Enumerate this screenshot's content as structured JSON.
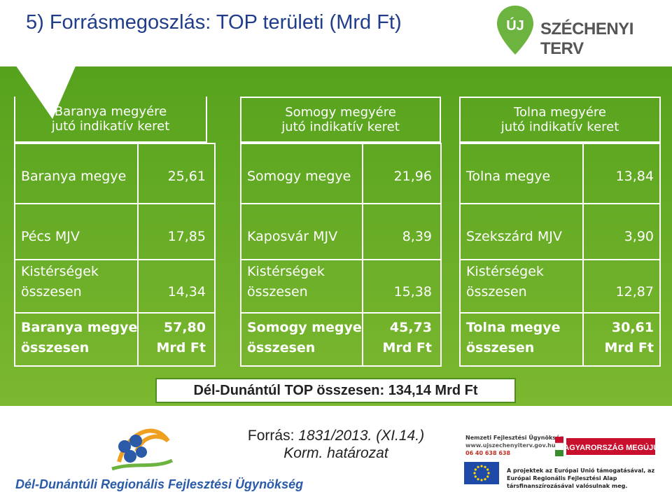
{
  "title": "5) Forrásmegoszlás: TOP területi (Mrd Ft)",
  "brand": {
    "uj": "ÚJ",
    "name": "SZÉCHENYI TERV",
    "color": "#6db33f"
  },
  "columns": [
    {
      "header_line1": "Baranya megyére",
      "header_line2": "jutó indikatív keret",
      "county_label": "Baranya megye",
      "county_value": "25,61",
      "city_label": "Pécs MJV",
      "city_value": "17,85",
      "regions_label1": "Kistérségek",
      "regions_label2": "összesen",
      "regions_value": "14,34",
      "total_label1": "Baranya megye",
      "total_label2": "összesen",
      "total_value1": "57,80",
      "total_value2": "Mrd Ft"
    },
    {
      "header_line1": "Somogy megyére",
      "header_line2": "jutó indikatív keret",
      "county_label": "Somogy megye",
      "county_value": "21,96",
      "city_label": "Kaposvár MJV",
      "city_value": "8,39",
      "regions_label1": "Kistérségek",
      "regions_label2": "összesen",
      "regions_value": "15,38",
      "total_label1": "Somogy megye",
      "total_label2": "összesen",
      "total_value1": "45,73",
      "total_value2": "Mrd Ft"
    },
    {
      "header_line1": "Tolna megyére",
      "header_line2": "jutó indikatív keret",
      "county_label": "Tolna megye",
      "county_value": "13,84",
      "city_label": "Szekszárd MJV",
      "city_value": "3,90",
      "regions_label1": "Kistérségek",
      "regions_label2": "összesen",
      "regions_value": "12,87",
      "total_label1": "Tolna megye",
      "total_label2": "összesen",
      "total_value1": "30,61",
      "total_value2": "Mrd Ft"
    }
  ],
  "grand_total": "Dél-Dunántúl TOP összesen: 134,14 Mrd Ft",
  "source": {
    "line1_prefix": "Forrás: ",
    "line1_italic": "1831/2013. (XI.14.)",
    "line2_italic": "Korm. határozat"
  },
  "org_name": "Dél-Dunántúli Regionális Fejlesztési Ügynökség",
  "nfu": {
    "line1": "Nemzeti Fejlesztési Ügynökség",
    "line2": "www.ujszechenyiterv.gov.hu",
    "line3": "06 40 638 638"
  },
  "hu_banner": "MAGYARORSZÁG MEGÚJUL",
  "eu_text": "A projektek az Európai Unió támogatásával, az Európai Regionális Fejlesztési Alap társfinanszírozásával valósulnak meg.",
  "colors": {
    "green_band": "#5ea825",
    "title": "#1f3d8a",
    "org": "#2a5aa8"
  }
}
